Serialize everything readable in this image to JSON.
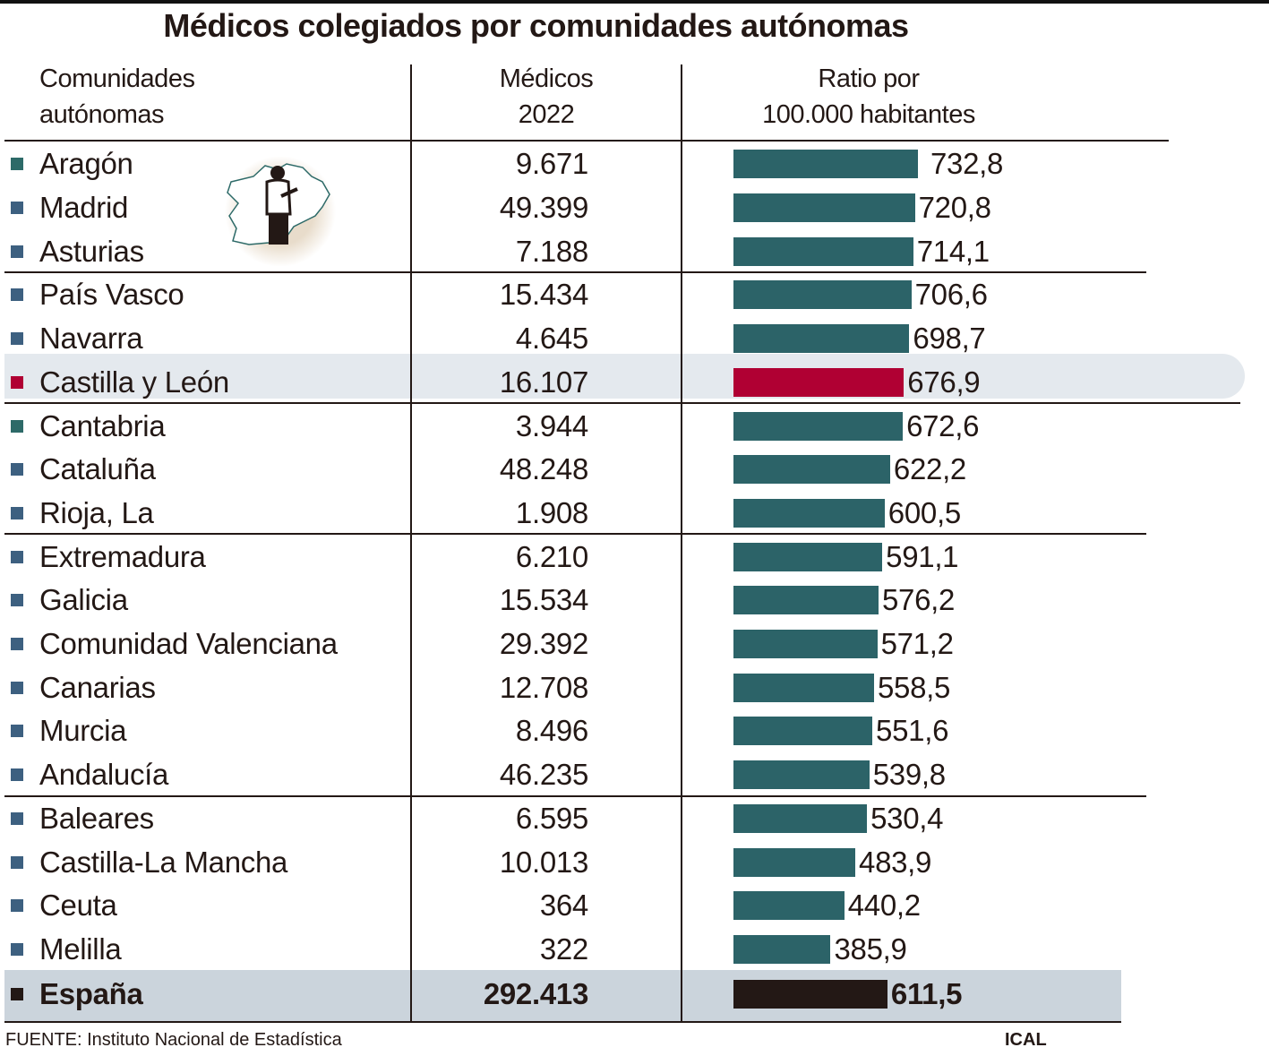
{
  "title": "Médicos colegiados por comunidades autónomas",
  "chart_data": {
    "type": "bar",
    "title": "Médicos colegiados por comunidades autónomas",
    "columns": [
      {
        "line1": "Comunidades",
        "line2": "autónomas"
      },
      {
        "line1": "Médicos",
        "line2": "2022"
      },
      {
        "line1": "Ratio por",
        "line2": "100.000 habitantes"
      }
    ],
    "rows": [
      {
        "name": "Aragón",
        "medicos": "9.671",
        "ratio": 732.8,
        "ratio_label": "732,8",
        "marker": "#2d6a68"
      },
      {
        "name": "Madrid",
        "medicos": "49.399",
        "ratio": 720.8,
        "ratio_label": "720,8",
        "marker": "#3d6080"
      },
      {
        "name": "Asturias",
        "medicos": "7.188",
        "ratio": 714.1,
        "ratio_label": "714,1",
        "marker": "#3d6080"
      },
      {
        "name": "País Vasco",
        "medicos": "15.434",
        "ratio": 706.6,
        "ratio_label": "706,6",
        "marker": "#3d6080"
      },
      {
        "name": "Navarra",
        "medicos": "4.645",
        "ratio": 698.7,
        "ratio_label": "698,7",
        "marker": "#3d6080"
      },
      {
        "name": "Castilla y León",
        "medicos": "16.107",
        "ratio": 676.9,
        "ratio_label": "676,9",
        "marker": "#b00033",
        "highlight": true
      },
      {
        "name": "Cantabria",
        "medicos": "3.944",
        "ratio": 672.6,
        "ratio_label": "672,6",
        "marker": "#2d6a68"
      },
      {
        "name": "Cataluña",
        "medicos": "48.248",
        "ratio": 622.2,
        "ratio_label": "622,2",
        "marker": "#3d6080"
      },
      {
        "name": "Rioja, La",
        "medicos": "1.908",
        "ratio": 600.5,
        "ratio_label": "600,5",
        "marker": "#3d6080"
      },
      {
        "name": "Extremadura",
        "medicos": "6.210",
        "ratio": 591.1,
        "ratio_label": "591,1",
        "marker": "#3d6080"
      },
      {
        "name": "Galicia",
        "medicos": "15.534",
        "ratio": 576.2,
        "ratio_label": "576,2",
        "marker": "#3d6080"
      },
      {
        "name": "Comunidad Valenciana",
        "medicos": "29.392",
        "ratio": 571.2,
        "ratio_label": "571,2",
        "marker": "#3d6080"
      },
      {
        "name": "Canarias",
        "medicos": "12.708",
        "ratio": 558.5,
        "ratio_label": "558,5",
        "marker": "#3d6080"
      },
      {
        "name": "Murcia",
        "medicos": "8.496",
        "ratio": 551.6,
        "ratio_label": "551,6",
        "marker": "#3d6080"
      },
      {
        "name": "Andalucía",
        "medicos": "46.235",
        "ratio": 539.8,
        "ratio_label": "539,8",
        "marker": "#3d6080"
      },
      {
        "name": "Baleares",
        "medicos": "6.595",
        "ratio": 530.4,
        "ratio_label": "530,4",
        "marker": "#3d6080"
      },
      {
        "name": "Castilla-La Mancha",
        "medicos": "10.013",
        "ratio": 483.9,
        "ratio_label": "483,9",
        "marker": "#3d6080"
      },
      {
        "name": "Ceuta",
        "medicos": "364",
        "ratio": 440.2,
        "ratio_label": "440,2",
        "marker": "#3d6080"
      },
      {
        "name": "Melilla",
        "medicos": "322",
        "ratio": 385.9,
        "ratio_label": "385,9",
        "marker": "#3d6080"
      }
    ],
    "total": {
      "name": "España",
      "medicos": "292.413",
      "ratio": 611.5,
      "ratio_label": "611,5",
      "marker": "#231815"
    },
    "colors": {
      "bar": "#2c6368",
      "highlight_bar": "#b00033",
      "total_bar": "#231815",
      "highlight_bg": "#e4e9ee",
      "total_bg": "#cbd4dc"
    }
  },
  "footer": {
    "source": "FUENTE: Instituto Nacional de Estadística",
    "credit": "ICAL"
  },
  "icons": {
    "illustration": "doctor-on-castilla-y-leon-map-icon"
  }
}
